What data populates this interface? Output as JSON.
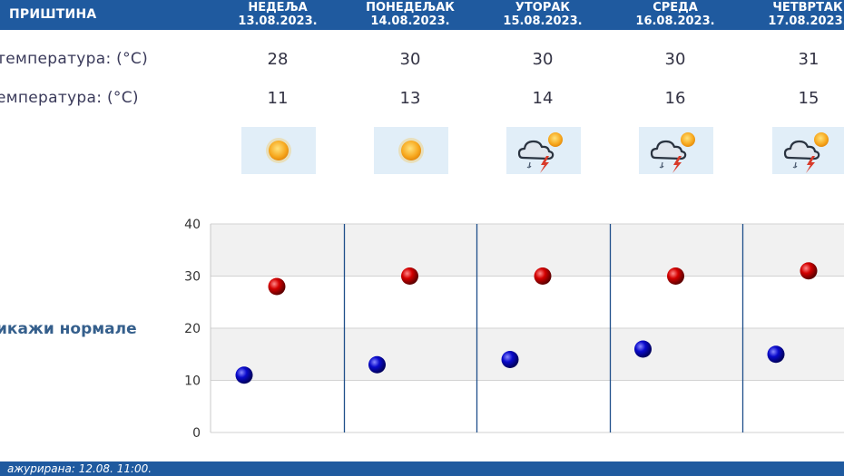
{
  "header": {
    "city": "ПРИШТИНА",
    "days": [
      {
        "name": "НЕДЕЉА",
        "date": "13.08.2023."
      },
      {
        "name": "ПОНЕДЕЉАК",
        "date": "14.08.2023."
      },
      {
        "name": "УТОРАК",
        "date": "15.08.2023."
      },
      {
        "name": "СРЕДА",
        "date": "16.08.2023."
      },
      {
        "name": "ЧЕТВРТАК",
        "date": "17.08.2023."
      }
    ]
  },
  "rows": {
    "max_label": "температура: (°C)",
    "min_label": "емпература: (°C)",
    "weather_label": ":"
  },
  "max_temps": [
    "28",
    "30",
    "30",
    "30",
    "31"
  ],
  "min_temps": [
    "11",
    "13",
    "14",
    "16",
    "15"
  ],
  "weather_icons": [
    "sun-icon",
    "sun-icon",
    "storm-cloud-sun-icon",
    "storm-cloud-sun-icon",
    "storm-cloud-sun-icon"
  ],
  "normale_link": "икажи нормале",
  "footer": {
    "updated": "ажурирана:  12.08.  11:00."
  },
  "colors": {
    "header_bg": "#1f5a9f",
    "max_marker": "#cc0000",
    "min_marker": "#0000cc",
    "grid_band": "#f1f1f1",
    "divider": "#1f4f8a"
  },
  "chart_data": {
    "type": "scatter",
    "categories": [
      "13.08.2023.",
      "14.08.2023.",
      "15.08.2023.",
      "16.08.2023.",
      "17.08.2023."
    ],
    "series": [
      {
        "values": [
          28,
          30,
          30,
          30,
          31
        ]
      },
      {
        "values": [
          11,
          13,
          14,
          16,
          15
        ]
      }
    ],
    "yticks": [
      "0",
      "10",
      "20",
      "30",
      "40"
    ],
    "ylim": [
      0,
      40
    ],
    "grid": true
  }
}
